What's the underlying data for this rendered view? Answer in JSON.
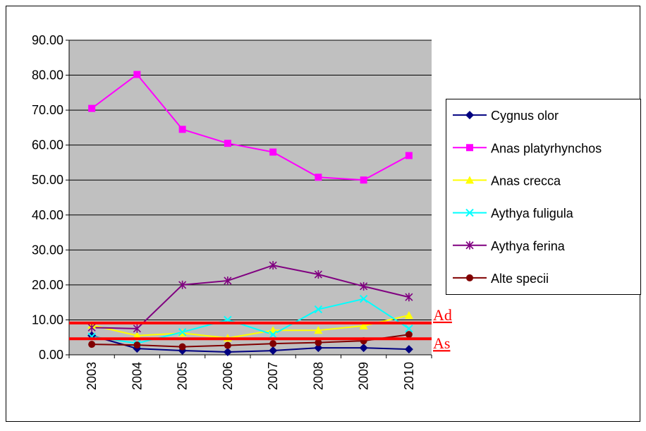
{
  "chart_data": {
    "type": "line",
    "categories": [
      "2003",
      "2004",
      "2005",
      "2006",
      "2007",
      "2008",
      "2009",
      "2010"
    ],
    "series": [
      {
        "name": "Cygnus olor",
        "color": "#000080",
        "marker": "diamond",
        "values": [
          5.5,
          1.8,
          1.2,
          0.8,
          1.2,
          2.0,
          2.0,
          1.6
        ]
      },
      {
        "name": "Anas platyrhynchos",
        "color": "#ff00ff",
        "marker": "square",
        "values": [
          70.5,
          80.2,
          64.5,
          60.5,
          58,
          50.8,
          50,
          57
        ]
      },
      {
        "name": "Anas crecca",
        "color": "#ffff00",
        "marker": "triangle",
        "values": [
          8.5,
          5.5,
          6.2,
          4.8,
          7,
          7,
          8.3,
          11.3
        ]
      },
      {
        "name": "Aythya fuligula",
        "color": "#00ffff",
        "marker": "x",
        "values": [
          5.2,
          3.3,
          6.5,
          10,
          5.8,
          13,
          16,
          7.5
        ]
      },
      {
        "name": "Aythya ferina",
        "color": "#800080",
        "marker": "asterisk",
        "values": [
          7.8,
          7.5,
          20,
          21.2,
          25.6,
          23,
          19.6,
          16.5
        ]
      },
      {
        "name": "Alte specii",
        "color": "#800000",
        "marker": "circle",
        "values": [
          3,
          2.8,
          2.3,
          2.7,
          3.2,
          3.5,
          4,
          5.8
        ]
      }
    ],
    "reference_lines": [
      {
        "label": "Ad",
        "value": 9.1,
        "color": "#ff0000"
      },
      {
        "label": "As",
        "value": 4.6,
        "color": "#ff0000"
      }
    ],
    "ylim": [
      0,
      90
    ],
    "yticks": [
      {
        "value": 0,
        "label": "0.00"
      },
      {
        "value": 10,
        "label": "10.00"
      },
      {
        "value": 20,
        "label": "20.00"
      },
      {
        "value": 30,
        "label": "30.00"
      },
      {
        "value": 40,
        "label": "40.00"
      },
      {
        "value": 50,
        "label": "50.00"
      },
      {
        "value": 60,
        "label": "60.00"
      },
      {
        "value": 70,
        "label": "70.00"
      },
      {
        "value": 80,
        "label": "80.00"
      },
      {
        "value": 90,
        "label": "90.00"
      }
    ],
    "grid": true,
    "plot_background": "#c0c0c0",
    "legend": "right"
  }
}
